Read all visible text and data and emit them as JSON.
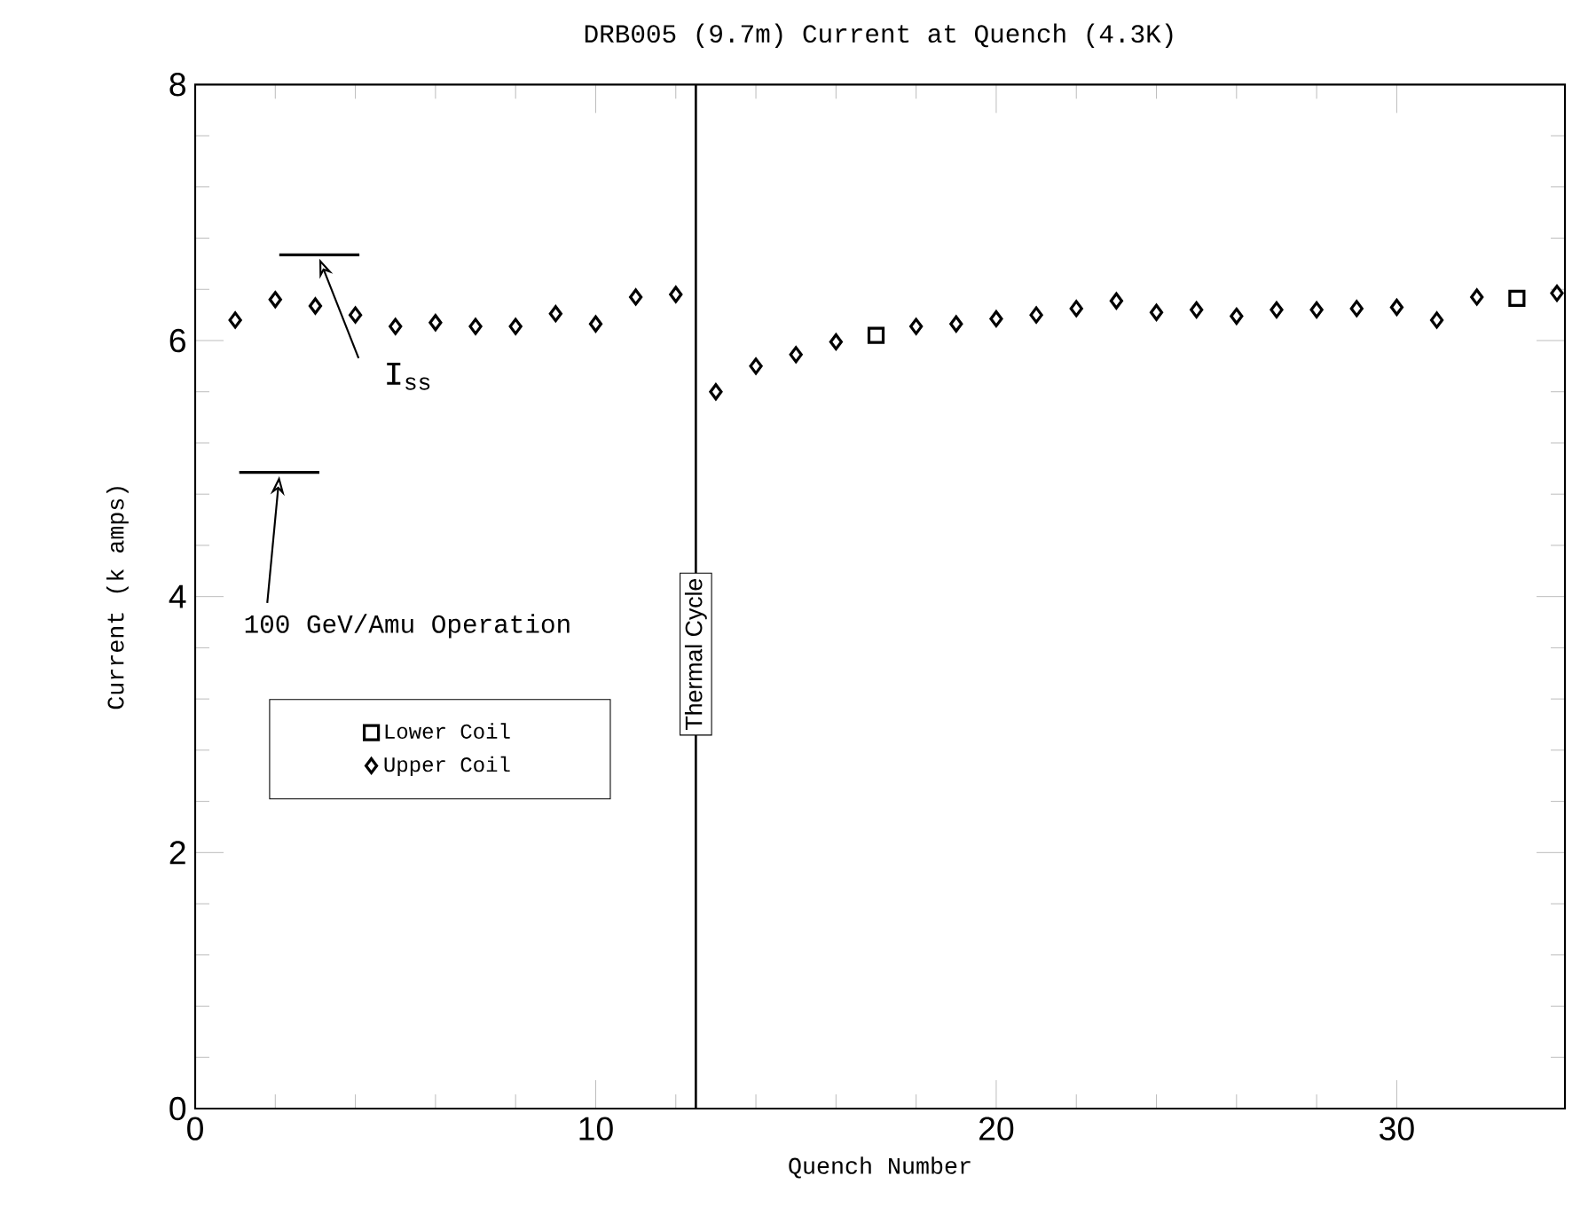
{
  "chart_data": {
    "type": "scatter",
    "title": "DRB005 (9.7m) Current at Quench (4.3K)",
    "xlabel": "Quench Number",
    "ylabel": "Current (k amps)",
    "xlim": [
      0,
      34.2
    ],
    "ylim": [
      0,
      8
    ],
    "xticks": [
      0,
      10,
      20,
      30
    ],
    "yticks": [
      0,
      2,
      4,
      6,
      8
    ],
    "grid": false,
    "legend": "left",
    "series": [
      {
        "name": "Lower Coil",
        "color": "#000000",
        "marker": "square",
        "x": [
          17,
          33
        ],
        "values": [
          6.04,
          6.33
        ]
      },
      {
        "name": "Upper Coil",
        "color": "#000000",
        "marker": "diamond",
        "x": [
          1,
          2,
          3,
          4,
          5,
          6,
          7,
          8,
          9,
          10,
          11,
          12,
          13,
          14,
          15,
          16,
          18,
          19,
          20,
          21,
          22,
          23,
          24,
          25,
          26,
          27,
          28,
          29,
          30,
          31,
          32,
          34
        ],
        "values": [
          6.16,
          6.32,
          6.27,
          6.2,
          6.11,
          6.14,
          6.11,
          6.11,
          6.21,
          6.13,
          6.34,
          6.36,
          5.6,
          5.8,
          5.89,
          5.99,
          6.11,
          6.13,
          6.17,
          6.2,
          6.25,
          6.31,
          6.22,
          6.24,
          6.19,
          6.24,
          6.24,
          6.25,
          6.26,
          6.16,
          6.34,
          6.37
        ]
      },
      {
        "type": "line",
        "color": "#000000",
        "x": [
          2.1,
          4.1
        ],
        "values": [
          6.67,
          6.67
        ]
      },
      {
        "type": "line",
        "color": "#000000",
        "x": [
          1.1,
          3.1
        ],
        "values": [
          4.97,
          4.97
        ]
      }
    ],
    "ref_lines": [
      {
        "axis": "x",
        "value": 12.5,
        "label": "Thermal Cycle",
        "color": "#000000"
      }
    ],
    "annotations": [
      {
        "text": "I$_{ss}$",
        "x": 3.1,
        "y": 6.67
      },
      {
        "text": "100 GeV/Amu Operation",
        "x": 2.1,
        "y": 4.97
      }
    ]
  }
}
